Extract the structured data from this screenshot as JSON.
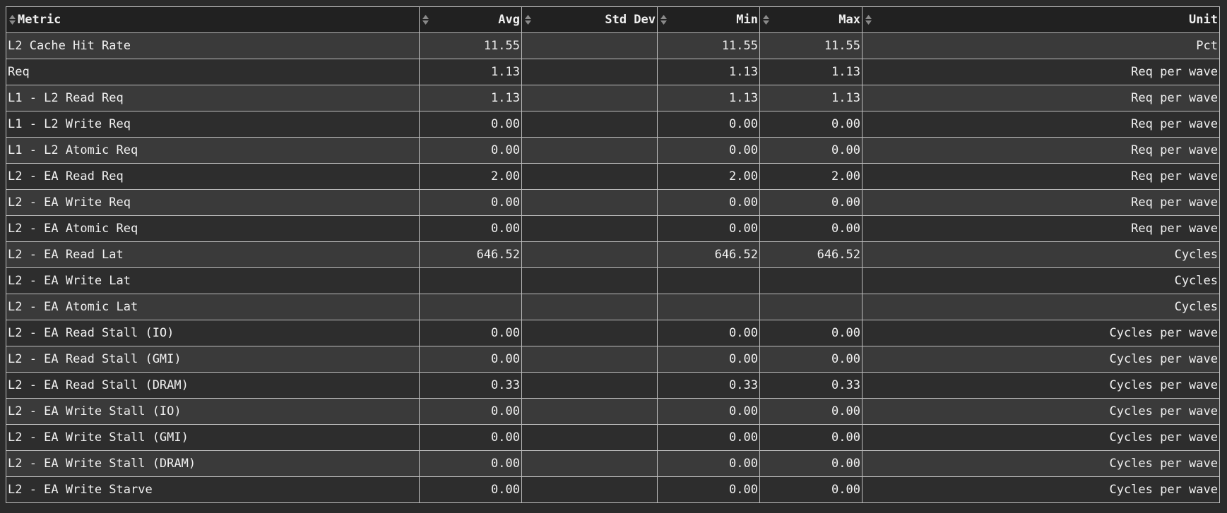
{
  "table": {
    "columns": [
      {
        "label": "Metric",
        "icon": "sort-icon"
      },
      {
        "label": "Avg",
        "icon": "sort-icon"
      },
      {
        "label": "Std Dev",
        "icon": "sort-icon"
      },
      {
        "label": "Min",
        "icon": "sort-icon"
      },
      {
        "label": "Max",
        "icon": "sort-icon"
      },
      {
        "label": "Unit",
        "icon": "sort-icon"
      }
    ],
    "rows": [
      {
        "metric": "L2 Cache Hit Rate",
        "avg": "11.55",
        "std": "",
        "min": "11.55",
        "max": "11.55",
        "unit": "Pct"
      },
      {
        "metric": "Req",
        "avg": "1.13",
        "std": "",
        "min": "1.13",
        "max": "1.13",
        "unit": "Req per wave"
      },
      {
        "metric": "L1 - L2 Read Req",
        "avg": "1.13",
        "std": "",
        "min": "1.13",
        "max": "1.13",
        "unit": "Req per wave"
      },
      {
        "metric": "L1 - L2 Write Req",
        "avg": "0.00",
        "std": "",
        "min": "0.00",
        "max": "0.00",
        "unit": "Req per wave"
      },
      {
        "metric": "L1 - L2 Atomic Req",
        "avg": "0.00",
        "std": "",
        "min": "0.00",
        "max": "0.00",
        "unit": "Req per wave"
      },
      {
        "metric": "L2 - EA Read Req",
        "avg": "2.00",
        "std": "",
        "min": "2.00",
        "max": "2.00",
        "unit": "Req per wave"
      },
      {
        "metric": "L2 - EA Write Req",
        "avg": "0.00",
        "std": "",
        "min": "0.00",
        "max": "0.00",
        "unit": "Req per wave"
      },
      {
        "metric": "L2 - EA Atomic Req",
        "avg": "0.00",
        "std": "",
        "min": "0.00",
        "max": "0.00",
        "unit": "Req per wave"
      },
      {
        "metric": "L2 - EA Read Lat",
        "avg": "646.52",
        "std": "",
        "min": "646.52",
        "max": "646.52",
        "unit": "Cycles"
      },
      {
        "metric": "L2 - EA Write Lat",
        "avg": "",
        "std": "",
        "min": "",
        "max": "",
        "unit": "Cycles"
      },
      {
        "metric": "L2 - EA Atomic Lat",
        "avg": "",
        "std": "",
        "min": "",
        "max": "",
        "unit": "Cycles"
      },
      {
        "metric": "L2 - EA Read Stall (IO)",
        "avg": "0.00",
        "std": "",
        "min": "0.00",
        "max": "0.00",
        "unit": "Cycles per wave"
      },
      {
        "metric": "L2 - EA Read Stall (GMI)",
        "avg": "0.00",
        "std": "",
        "min": "0.00",
        "max": "0.00",
        "unit": "Cycles per wave"
      },
      {
        "metric": "L2 - EA Read Stall (DRAM)",
        "avg": "0.33",
        "std": "",
        "min": "0.33",
        "max": "0.33",
        "unit": "Cycles per wave"
      },
      {
        "metric": "L2 - EA Write Stall (IO)",
        "avg": "0.00",
        "std": "",
        "min": "0.00",
        "max": "0.00",
        "unit": "Cycles per wave"
      },
      {
        "metric": "L2 - EA Write Stall (GMI)",
        "avg": "0.00",
        "std": "",
        "min": "0.00",
        "max": "0.00",
        "unit": "Cycles per wave"
      },
      {
        "metric": "L2 - EA Write Stall (DRAM)",
        "avg": "0.00",
        "std": "",
        "min": "0.00",
        "max": "0.00",
        "unit": "Cycles per wave"
      },
      {
        "metric": "L2 - EA Write Starve",
        "avg": "0.00",
        "std": "",
        "min": "0.00",
        "max": "0.00",
        "unit": "Cycles per wave"
      }
    ]
  }
}
